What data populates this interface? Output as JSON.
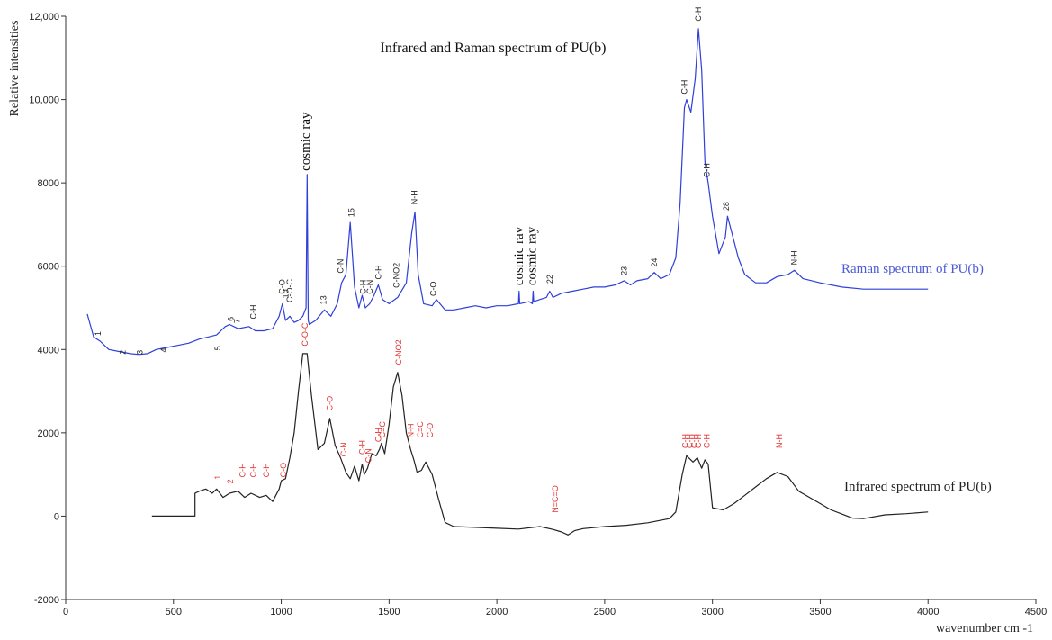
{
  "chart_data": {
    "type": "line",
    "title": "Infrared and Raman spectrum of PU(b)",
    "xlabel": "wavenumber cm -1",
    "ylabel": "Relative intensities",
    "xlim": [
      0,
      4500
    ],
    "ylim": [
      -2000,
      12000
    ],
    "x_ticks": [
      "0",
      "500",
      "1000",
      "1500",
      "2000",
      "2500",
      "3000",
      "3500",
      "4000",
      "4500"
    ],
    "y_ticks": [
      "-2000",
      "0",
      "2000",
      "4000",
      "6000",
      "8000",
      "10,000",
      "12,000"
    ],
    "grid": false,
    "series": [
      {
        "name": "Raman spectrum of PU(b)",
        "color": "#2f3fd8",
        "x": [
          100,
          130,
          160,
          200,
          250,
          300,
          340,
          380,
          420,
          470,
          520,
          570,
          620,
          660,
          700,
          740,
          760,
          800,
          850,
          880,
          920,
          960,
          990,
          1005,
          1020,
          1040,
          1060,
          1080,
          1100,
          1115,
          1120,
          1125,
          1130,
          1160,
          1200,
          1230,
          1260,
          1280,
          1300,
          1320,
          1340,
          1360,
          1375,
          1390,
          1410,
          1430,
          1450,
          1470,
          1500,
          1540,
          1580,
          1605,
          1620,
          1635,
          1660,
          1700,
          1720,
          1760,
          1800,
          1850,
          1900,
          1950,
          2000,
          2050,
          2100,
          2103,
          2106,
          2150,
          2165,
          2168,
          2171,
          2200,
          2230,
          2245,
          2260,
          2300,
          2350,
          2400,
          2450,
          2500,
          2550,
          2590,
          2620,
          2650,
          2700,
          2730,
          2760,
          2800,
          2830,
          2850,
          2870,
          2880,
          2900,
          2920,
          2935,
          2950,
          2965,
          2980,
          3000,
          3030,
          3060,
          3070,
          3090,
          3120,
          3150,
          3200,
          3250,
          3300,
          3350,
          3380,
          3420,
          3500,
          3600,
          3700,
          3800,
          3900,
          4000
        ],
        "y": [
          4850,
          4300,
          4200,
          4000,
          3950,
          3900,
          3880,
          3900,
          4000,
          4050,
          4100,
          4150,
          4250,
          4300,
          4350,
          4550,
          4600,
          4500,
          4550,
          4450,
          4450,
          4500,
          4800,
          5100,
          4700,
          4800,
          4650,
          4700,
          4800,
          5000,
          8200,
          4700,
          4600,
          4700,
          4950,
          4800,
          5100,
          5600,
          5800,
          7050,
          5500,
          5000,
          5300,
          5000,
          5100,
          5300,
          5550,
          5200,
          5100,
          5250,
          5600,
          6800,
          7300,
          5800,
          5100,
          5050,
          5200,
          4950,
          4950,
          5000,
          5050,
          5000,
          5050,
          5050,
          5100,
          5400,
          5100,
          5150,
          5100,
          5400,
          5150,
          5200,
          5250,
          5400,
          5250,
          5350,
          5400,
          5450,
          5500,
          5500,
          5550,
          5650,
          5550,
          5650,
          5700,
          5850,
          5700,
          5800,
          6200,
          7500,
          9800,
          10000,
          9700,
          10500,
          11700,
          10700,
          8500,
          8000,
          7200,
          6300,
          6700,
          7200,
          6800,
          6200,
          5800,
          5600,
          5600,
          5750,
          5800,
          5900,
          5700,
          5600,
          5500,
          5450,
          5450,
          5450,
          5450
        ]
      },
      {
        "name": "Infrared spectrum of PU(b)",
        "color": "#222222",
        "x": [
          400,
          600,
          600,
          620,
          650,
          680,
          700,
          730,
          760,
          800,
          830,
          860,
          900,
          930,
          960,
          990,
          1000,
          1020,
          1040,
          1060,
          1080,
          1100,
          1120,
          1140,
          1170,
          1200,
          1225,
          1250,
          1275,
          1300,
          1320,
          1340,
          1360,
          1375,
          1385,
          1400,
          1420,
          1440,
          1455,
          1465,
          1480,
          1500,
          1520,
          1540,
          1560,
          1580,
          1600,
          1615,
          1630,
          1650,
          1670,
          1700,
          1730,
          1760,
          1800,
          1900,
          2000,
          2100,
          2200,
          2260,
          2300,
          2330,
          2360,
          2400,
          2500,
          2600,
          2700,
          2800,
          2830,
          2860,
          2880,
          2910,
          2930,
          2950,
          2965,
          2980,
          3000,
          3050,
          3100,
          3150,
          3200,
          3250,
          3300,
          3350,
          3400,
          3450,
          3500,
          3550,
          3600,
          3650,
          3700,
          3800,
          3900,
          4000
        ],
        "y": [
          0,
          0,
          550,
          600,
          650,
          550,
          650,
          450,
          550,
          600,
          450,
          550,
          450,
          500,
          350,
          650,
          850,
          900,
          1400,
          2000,
          3000,
          3900,
          3900,
          2900,
          1600,
          1750,
          2350,
          1700,
          1400,
          1050,
          900,
          1200,
          850,
          1250,
          1000,
          1150,
          1500,
          1450,
          1600,
          1750,
          1500,
          2200,
          3100,
          3450,
          2900,
          2000,
          1600,
          1350,
          1050,
          1100,
          1300,
          1000,
          400,
          -150,
          -250,
          -270,
          -290,
          -310,
          -250,
          -320,
          -380,
          -450,
          -350,
          -300,
          -250,
          -220,
          -160,
          -60,
          100,
          1000,
          1450,
          1300,
          1400,
          1150,
          1350,
          1250,
          200,
          150,
          300,
          500,
          700,
          900,
          1050,
          950,
          600,
          450,
          300,
          150,
          50,
          -50,
          -60,
          30,
          60,
          100
        ]
      }
    ],
    "annotations": {
      "cosmic": [
        {
          "text": "cosmic ray",
          "x": 1115,
          "y": 8200
        },
        {
          "text": "cosmic rav",
          "x": 2105,
          "y": 5450
        },
        {
          "text": "cosmic ray",
          "x": 2165,
          "y": 5450
        }
      ],
      "raman_peaks": [
        {
          "text": "1",
          "x": 150,
          "y": 4200
        },
        {
          "text": "2",
          "x": 265,
          "y": 3750
        },
        {
          "text": "3",
          "x": 345,
          "y": 3750
        },
        {
          "text": "4",
          "x": 455,
          "y": 3800
        },
        {
          "text": "5",
          "x": 705,
          "y": 3850
        },
        {
          "text": "6",
          "x": 765,
          "y": 4550
        },
        {
          "text": "7",
          "x": 795,
          "y": 4500
        },
        {
          "text": "C-H",
          "x": 870,
          "y": 4600
        },
        {
          "text": "C-O",
          "x": 1005,
          "y": 5200
        },
        {
          "text": "10",
          "x": 1020,
          "y": 5100
        },
        {
          "text": "C-O-C",
          "x": 1040,
          "y": 5000
        },
        {
          "text": "13",
          "x": 1195,
          "y": 4950
        },
        {
          "text": "C-N",
          "x": 1275,
          "y": 5700
        },
        {
          "text": "15",
          "x": 1325,
          "y": 7050
        },
        {
          "text": "C-H",
          "x": 1380,
          "y": 5200
        },
        {
          "text": "C-N",
          "x": 1410,
          "y": 5200
        },
        {
          "text": "C-H",
          "x": 1450,
          "y": 5550
        },
        {
          "text": "C-NO2",
          "x": 1535,
          "y": 5350
        },
        {
          "text": "N-H",
          "x": 1618,
          "y": 7350
        },
        {
          "text": "C-O",
          "x": 1705,
          "y": 5150
        },
        {
          "text": "22",
          "x": 2245,
          "y": 5450
        },
        {
          "text": "23",
          "x": 2590,
          "y": 5650
        },
        {
          "text": "24",
          "x": 2730,
          "y": 5850
        },
        {
          "text": "C-H",
          "x": 2870,
          "y": 10000
        },
        {
          "text": "C-H",
          "x": 2935,
          "y": 11750
        },
        {
          "text": "C-H",
          "x": 2975,
          "y": 8000
        },
        {
          "text": "28",
          "x": 3065,
          "y": 7200
        },
        {
          "text": "N-H",
          "x": 3380,
          "y": 5900
        }
      ],
      "ir_peaks": [
        {
          "text": "1",
          "x": 705,
          "y": 750
        },
        {
          "text": "2",
          "x": 765,
          "y": 650
        },
        {
          "text": "C-H",
          "x": 820,
          "y": 800
        },
        {
          "text": "C-H",
          "x": 870,
          "y": 800
        },
        {
          "text": "C-H",
          "x": 930,
          "y": 800
        },
        {
          "text": "C-O",
          "x": 1010,
          "y": 800
        },
        {
          "text": "C-O-C",
          "x": 1110,
          "y": 3950
        },
        {
          "text": "C-O",
          "x": 1225,
          "y": 2400
        },
        {
          "text": "C-N",
          "x": 1290,
          "y": 1300
        },
        {
          "text": "C-H",
          "x": 1375,
          "y": 1350
        },
        {
          "text": "C-N",
          "x": 1405,
          "y": 1150
        },
        {
          "text": "C-H",
          "x": 1450,
          "y": 1650
        },
        {
          "text": "C=C",
          "x": 1470,
          "y": 1750
        },
        {
          "text": "C-NO2",
          "x": 1545,
          "y": 3500
        },
        {
          "text": "N-H",
          "x": 1600,
          "y": 1750
        },
        {
          "text": "C=C",
          "x": 1645,
          "y": 1750
        },
        {
          "text": "C-O",
          "x": 1690,
          "y": 1750
        },
        {
          "text": "N=C=O",
          "x": 2270,
          "y": -50
        },
        {
          "text": "C-H",
          "x": 2875,
          "y": 1500
        },
        {
          "text": "C-H",
          "x": 2895,
          "y": 1500
        },
        {
          "text": "C-H",
          "x": 2915,
          "y": 1500
        },
        {
          "text": "C-H",
          "x": 2935,
          "y": 1500
        },
        {
          "text": "C-H",
          "x": 2975,
          "y": 1500
        },
        {
          "text": "N-H",
          "x": 3310,
          "y": 1500
        }
      ]
    },
    "legend_text_raman": "Raman spectrum of PU(b)",
    "legend_text_ir": "Infrared spectrum of PU(b)",
    "colors": {
      "raman": "#2f3fd8",
      "ir": "#222222",
      "ir_labels": "#e53030",
      "axis": "#333333"
    }
  }
}
